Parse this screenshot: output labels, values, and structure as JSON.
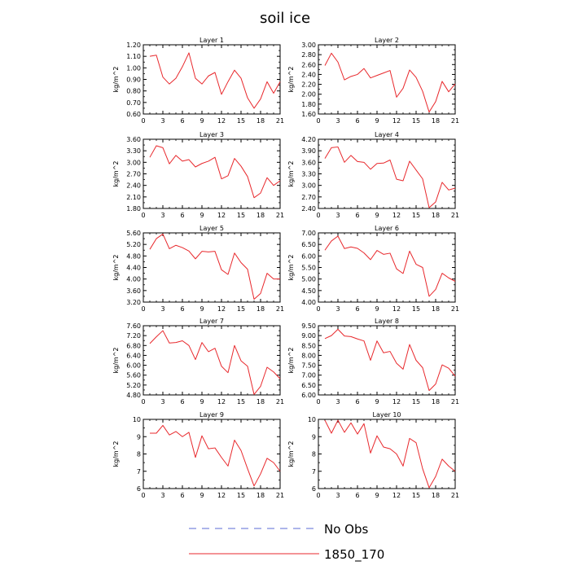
{
  "figure": {
    "title": "soil ice",
    "legend": [
      {
        "label": "No Obs",
        "color": "#5b6bd6",
        "dash": "dashed"
      },
      {
        "label": "1850_170",
        "color": "#e8282c",
        "dash": "solid"
      }
    ]
  },
  "chart_data": [
    {
      "type": "line",
      "title": "Layer 1",
      "ylabel": "kg/m^2",
      "xlim": [
        0,
        21
      ],
      "ylim": [
        0.6,
        1.2
      ],
      "xticks": [
        "0",
        "3",
        "6",
        "9",
        "12",
        "15",
        "18",
        "21"
      ],
      "yticks": [
        "0.60",
        "0.70",
        "0.80",
        "0.90",
        "1.00",
        "1.10",
        "1.20"
      ],
      "series": [
        {
          "name": "1850_170",
          "color": "#e8282c",
          "x": [
            1,
            2,
            3,
            4,
            5,
            6,
            7,
            8,
            9,
            10,
            11,
            12,
            13,
            14,
            15,
            16,
            17,
            18,
            19,
            20,
            21
          ],
          "y": [
            1.1,
            1.11,
            0.92,
            0.86,
            0.91,
            1.01,
            1.13,
            0.91,
            0.86,
            0.93,
            0.96,
            0.77,
            0.88,
            0.98,
            0.91,
            0.74,
            0.65,
            0.73,
            0.88,
            0.78,
            0.88
          ]
        }
      ]
    },
    {
      "type": "line",
      "title": "Layer 2",
      "ylabel": "kg/m^2",
      "xlim": [
        0,
        21
      ],
      "ylim": [
        1.6,
        3.0
      ],
      "xticks": [
        "0",
        "3",
        "6",
        "9",
        "12",
        "15",
        "18",
        "21"
      ],
      "yticks": [
        "1.60",
        "1.80",
        "2.00",
        "2.20",
        "2.40",
        "2.60",
        "2.80",
        "3.00"
      ],
      "series": [
        {
          "name": "1850_170",
          "color": "#e8282c",
          "x": [
            1,
            2,
            3,
            4,
            5,
            6,
            7,
            8,
            9,
            10,
            11,
            12,
            13,
            14,
            15,
            16,
            17,
            18,
            19,
            20,
            21
          ],
          "y": [
            2.58,
            2.83,
            2.65,
            2.29,
            2.36,
            2.4,
            2.52,
            2.33,
            2.38,
            2.43,
            2.48,
            1.94,
            2.12,
            2.49,
            2.34,
            2.06,
            1.64,
            1.85,
            2.26,
            2.05,
            2.21
          ]
        }
      ]
    },
    {
      "type": "line",
      "title": "Layer 3",
      "ylabel": "kg/m^2",
      "xlim": [
        0,
        21
      ],
      "ylim": [
        1.8,
        3.6
      ],
      "xticks": [
        "0",
        "3",
        "6",
        "9",
        "12",
        "15",
        "18",
        "21"
      ],
      "yticks": [
        "1.80",
        "2.10",
        "2.40",
        "2.70",
        "3.00",
        "3.30",
        "3.60"
      ],
      "series": [
        {
          "name": "1850_170",
          "color": "#e8282c",
          "x": [
            1,
            2,
            3,
            4,
            5,
            6,
            7,
            8,
            9,
            10,
            11,
            12,
            13,
            14,
            15,
            16,
            17,
            18,
            19,
            20,
            21
          ],
          "y": [
            3.13,
            3.43,
            3.38,
            2.96,
            3.18,
            3.03,
            3.07,
            2.88,
            2.97,
            3.03,
            3.13,
            2.57,
            2.65,
            3.1,
            2.9,
            2.63,
            2.08,
            2.2,
            2.6,
            2.4,
            2.52
          ]
        }
      ]
    },
    {
      "type": "line",
      "title": "Layer 4",
      "ylabel": "kg/m^2",
      "xlim": [
        0,
        21
      ],
      "ylim": [
        2.4,
        4.2
      ],
      "xticks": [
        "0",
        "3",
        "6",
        "9",
        "12",
        "15",
        "18",
        "21"
      ],
      "yticks": [
        "2.40",
        "2.70",
        "3.00",
        "3.30",
        "3.60",
        "3.90",
        "4.20"
      ],
      "series": [
        {
          "name": "1850_170",
          "color": "#e8282c",
          "x": [
            1,
            2,
            3,
            4,
            5,
            6,
            7,
            8,
            9,
            10,
            11,
            12,
            13,
            14,
            15,
            16,
            17,
            18,
            19,
            20,
            21
          ],
          "y": [
            3.7,
            3.98,
            4.0,
            3.6,
            3.78,
            3.62,
            3.6,
            3.42,
            3.57,
            3.58,
            3.66,
            3.16,
            3.12,
            3.63,
            3.4,
            3.17,
            2.42,
            2.57,
            3.08,
            2.88,
            2.93
          ]
        }
      ]
    },
    {
      "type": "line",
      "title": "Layer 5",
      "ylabel": "kg/m^2",
      "xlim": [
        0,
        21
      ],
      "ylim": [
        3.2,
        5.6
      ],
      "xticks": [
        "0",
        "3",
        "6",
        "9",
        "12",
        "15",
        "18",
        "21"
      ],
      "yticks": [
        "3.20",
        "3.60",
        "4.00",
        "4.40",
        "4.80",
        "5.20",
        "5.60"
      ],
      "series": [
        {
          "name": "1850_170",
          "color": "#e8282c",
          "x": [
            1,
            2,
            3,
            4,
            5,
            6,
            7,
            8,
            9,
            10,
            11,
            12,
            13,
            14,
            15,
            16,
            17,
            18,
            19,
            20,
            21
          ],
          "y": [
            5.03,
            5.4,
            5.56,
            5.05,
            5.17,
            5.09,
            4.97,
            4.7,
            4.96,
            4.94,
            4.96,
            4.32,
            4.16,
            4.9,
            4.57,
            4.34,
            3.3,
            3.5,
            4.2,
            4.0,
            4.0
          ]
        }
      ]
    },
    {
      "type": "line",
      "title": "Layer 6",
      "ylabel": "kg/m^2",
      "xlim": [
        0,
        21
      ],
      "ylim": [
        4.0,
        7.0
      ],
      "xticks": [
        "0",
        "3",
        "6",
        "9",
        "12",
        "15",
        "18",
        "21"
      ],
      "yticks": [
        "4.00",
        "4.50",
        "5.00",
        "5.50",
        "6.00",
        "6.50",
        "7.00"
      ],
      "series": [
        {
          "name": "1850_170",
          "color": "#e8282c",
          "x": [
            1,
            2,
            3,
            4,
            5,
            6,
            7,
            8,
            9,
            10,
            11,
            12,
            13,
            14,
            15,
            16,
            17,
            18,
            19,
            20,
            21
          ],
          "y": [
            6.25,
            6.65,
            6.86,
            6.32,
            6.39,
            6.33,
            6.13,
            5.84,
            6.24,
            6.07,
            6.12,
            5.44,
            5.24,
            6.21,
            5.64,
            5.5,
            4.25,
            4.55,
            5.25,
            5.05,
            4.9
          ]
        }
      ]
    },
    {
      "type": "line",
      "title": "Layer 7",
      "ylabel": "kg/m^2",
      "xlim": [
        0,
        21
      ],
      "ylim": [
        4.8,
        7.6
      ],
      "xticks": [
        "0",
        "3",
        "6",
        "9",
        "12",
        "15",
        "18",
        "21"
      ],
      "yticks": [
        "4.80",
        "5.20",
        "5.60",
        "6.00",
        "6.40",
        "6.80",
        "7.20",
        "7.60"
      ],
      "series": [
        {
          "name": "1850_170",
          "color": "#e8282c",
          "x": [
            1,
            2,
            3,
            4,
            5,
            6,
            7,
            8,
            9,
            10,
            11,
            12,
            13,
            14,
            15,
            16,
            17,
            18,
            19,
            20,
            21
          ],
          "y": [
            6.88,
            7.15,
            7.4,
            6.9,
            6.92,
            6.99,
            6.8,
            6.23,
            6.92,
            6.55,
            6.69,
            5.96,
            5.7,
            6.8,
            6.18,
            5.96,
            4.82,
            5.15,
            5.92,
            5.73,
            5.45
          ]
        }
      ]
    },
    {
      "type": "line",
      "title": "Layer 8",
      "ylabel": "kg/m^2",
      "xlim": [
        0,
        21
      ],
      "ylim": [
        6.0,
        9.5
      ],
      "xticks": [
        "0",
        "3",
        "6",
        "9",
        "12",
        "15",
        "18",
        "21"
      ],
      "yticks": [
        "6.00",
        "6.50",
        "7.00",
        "7.50",
        "8.00",
        "8.50",
        "9.00",
        "9.50"
      ],
      "series": [
        {
          "name": "1850_170",
          "color": "#e8282c",
          "x": [
            1,
            2,
            3,
            4,
            5,
            6,
            7,
            8,
            9,
            10,
            11,
            12,
            13,
            14,
            15,
            16,
            17,
            18,
            19,
            20,
            21
          ],
          "y": [
            8.85,
            9.0,
            9.32,
            8.98,
            8.95,
            8.83,
            8.73,
            7.75,
            8.73,
            8.13,
            8.2,
            7.6,
            7.3,
            8.55,
            7.75,
            7.38,
            6.22,
            6.55,
            7.52,
            7.35,
            6.95
          ]
        }
      ]
    },
    {
      "type": "line",
      "title": "Layer 9",
      "ylabel": "kg/m^2",
      "xlim": [
        0,
        21
      ],
      "ylim": [
        6,
        10
      ],
      "xticks": [
        "0",
        "3",
        "6",
        "9",
        "12",
        "15",
        "18",
        "21"
      ],
      "yticks": [
        "6",
        "7",
        "8",
        "9",
        "10"
      ],
      "series": [
        {
          "name": "1850_170",
          "color": "#e8282c",
          "x": [
            1,
            2,
            3,
            4,
            5,
            6,
            7,
            8,
            9,
            10,
            11,
            12,
            13,
            14,
            15,
            16,
            17,
            18,
            19,
            20,
            21
          ],
          "y": [
            9.2,
            9.2,
            9.65,
            9.1,
            9.3,
            9.0,
            9.25,
            7.8,
            9.05,
            8.3,
            8.35,
            7.8,
            7.3,
            8.8,
            8.2,
            7.15,
            6.15,
            6.85,
            7.75,
            7.5,
            7.0
          ]
        }
      ]
    },
    {
      "type": "line",
      "title": "Layer 10",
      "ylabel": "kg/m^2",
      "xlim": [
        0,
        21
      ],
      "ylim": [
        6,
        10
      ],
      "xticks": [
        "0",
        "3",
        "6",
        "9",
        "12",
        "15",
        "18",
        "21"
      ],
      "yticks": [
        "6",
        "7",
        "8",
        "9",
        "10"
      ],
      "series": [
        {
          "name": "1850_170",
          "color": "#e8282c",
          "x": [
            1,
            2,
            3,
            4,
            5,
            6,
            7,
            8,
            9,
            10,
            11,
            12,
            13,
            14,
            15,
            16,
            17,
            18,
            19,
            20,
            21
          ],
          "y": [
            9.95,
            9.2,
            9.95,
            9.25,
            9.8,
            9.15,
            9.75,
            8.05,
            9.05,
            8.4,
            8.3,
            8.0,
            7.3,
            8.9,
            8.65,
            7.15,
            6.05,
            6.7,
            7.7,
            7.3,
            7.0
          ]
        }
      ]
    }
  ]
}
